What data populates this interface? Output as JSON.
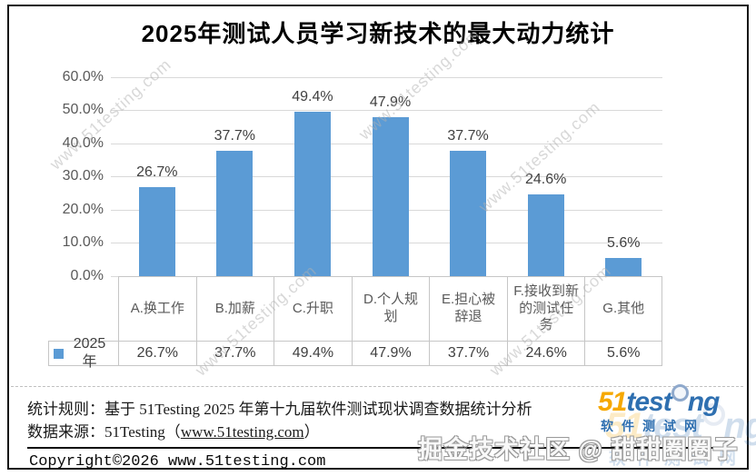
{
  "title": "2025年测试人员学习新技术的最大动力统计",
  "chart_data": {
    "type": "bar",
    "title": "2025年测试人员学习新技术的最大动力统计",
    "categories": [
      "A.换工作",
      "B.加薪",
      "C.升职",
      "D.个人规划",
      "E.担心被辞退",
      "F.接收到新的测试任务",
      "G.其他"
    ],
    "series": [
      {
        "name": "2025年",
        "values": [
          26.7,
          37.7,
          49.4,
          47.9,
          37.7,
          24.6,
          5.6
        ]
      }
    ],
    "value_labels": [
      "26.7%",
      "37.7%",
      "49.4%",
      "47.9%",
      "37.7%",
      "24.6%",
      "5.6%"
    ],
    "xlabel": "",
    "ylabel": "",
    "ylim": [
      0,
      60
    ],
    "ytick_step": 10,
    "ytick_labels": [
      "0.0%",
      "10.0%",
      "20.0%",
      "30.0%",
      "40.0%",
      "50.0%",
      "60.0%"
    ],
    "grid": true,
    "legend_position": "data-table-left",
    "bar_color": "#5b9bd5",
    "has_data_table": true
  },
  "watermark": {
    "text": "www.51testing.com"
  },
  "overlay_watermark": "掘金技术社区 @ 甜甜圈圈子",
  "footer": {
    "rule_line": "统计规则：基于 51Testing 2025 年第十九届软件测试现状调查数据统计分析",
    "source_prefix": "数据来源：51Testing（",
    "source_link": "www.51testing.com",
    "source_suffix": "）",
    "copyright": "Copyright©2026 www.51testing.com"
  },
  "logo": {
    "prefix": "51",
    "mid": "test",
    "suffix": "ng",
    "subtitle": "软件测试网",
    "orange": "#f6a800",
    "blue": "#2e6fb0"
  },
  "colors": {
    "bar": "#5b9bd5",
    "gridline": "#d9d9d9",
    "axis_text": "#595959",
    "value_text": "#404040",
    "table_border": "#c6c6c6"
  }
}
